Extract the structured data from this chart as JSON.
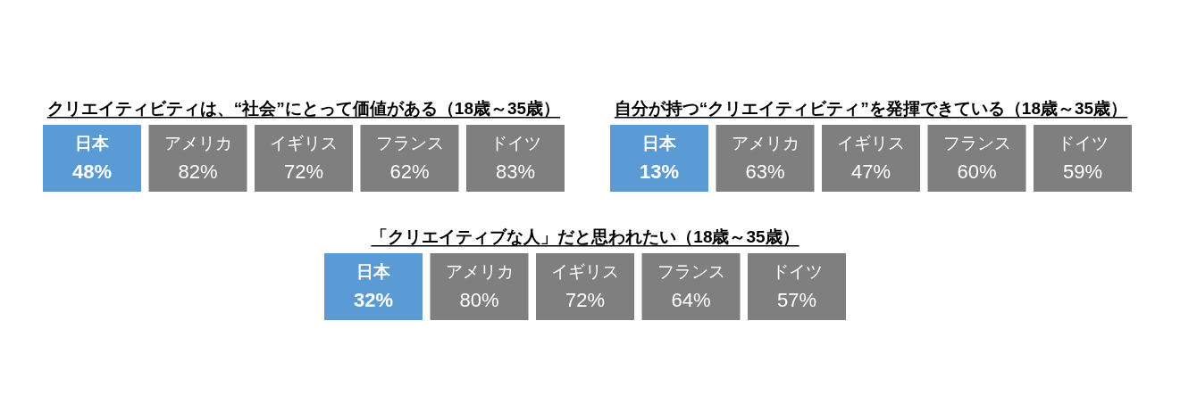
{
  "chart_data": [
    {
      "type": "other",
      "title": "クリエイティビティは、“社会”にとって価値がある（18歳～35歳）",
      "categories": [
        "日本",
        "アメリカ",
        "イギリス",
        "フランス",
        "ドイツ"
      ],
      "values": [
        48,
        82,
        72,
        62,
        83
      ],
      "value_labels": [
        "48%",
        "82%",
        "72%",
        "62%",
        "83%"
      ],
      "colors": [
        "#5b9bd5",
        "#7f7f7f",
        "#7f7f7f",
        "#7f7f7f",
        "#7f7f7f"
      ]
    },
    {
      "type": "other",
      "title": "自分が持つ“クリエイティビティ”を発揮できている（18歳～35歳）",
      "categories": [
        "日本",
        "アメリカ",
        "イギリス",
        "フランス",
        "ドイツ"
      ],
      "values": [
        13,
        63,
        47,
        60,
        59
      ],
      "value_labels": [
        "13%",
        "63%",
        "47%",
        "60%",
        "59%"
      ],
      "colors": [
        "#5b9bd5",
        "#7f7f7f",
        "#7f7f7f",
        "#7f7f7f",
        "#7f7f7f"
      ]
    },
    {
      "type": "other",
      "title": "「クリエイティブな人」だと思われたい（18歳～35歳）",
      "categories": [
        "日本",
        "アメリカ",
        "イギリス",
        "フランス",
        "ドイツ"
      ],
      "values": [
        32,
        80,
        72,
        64,
        57
      ],
      "value_labels": [
        "32%",
        "80%",
        "72%",
        "64%",
        "57%"
      ],
      "colors": [
        "#5b9bd5",
        "#7f7f7f",
        "#7f7f7f",
        "#7f7f7f",
        "#7f7f7f"
      ]
    }
  ]
}
